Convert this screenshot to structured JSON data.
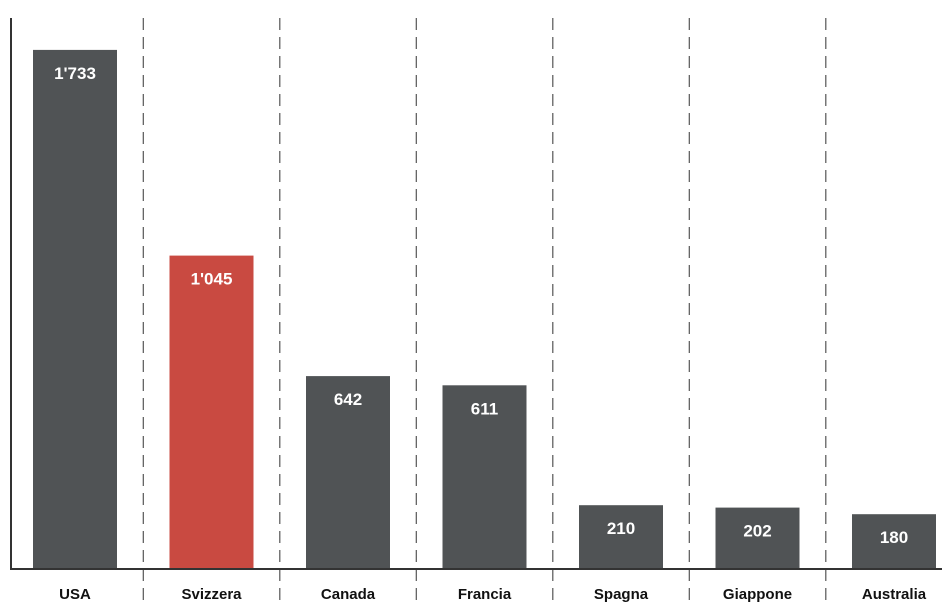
{
  "chart_data": {
    "type": "bar",
    "categories": [
      "USA",
      "Svizzera",
      "Canada",
      "Francia",
      "Spagna",
      "Giappone",
      "Australia"
    ],
    "values": [
      1733,
      1045,
      642,
      611,
      210,
      202,
      180
    ],
    "value_labels": [
      "1'733",
      "1'045",
      "642",
      "611",
      "210",
      "202",
      "180"
    ],
    "highlight_category": "Svizzera",
    "colors": {
      "bar": "#505355",
      "highlight": "#c94a41",
      "axis": "#333333",
      "divider": "#555555"
    },
    "ylim": [
      0,
      1900
    ],
    "grid": false,
    "legend": "none"
  }
}
